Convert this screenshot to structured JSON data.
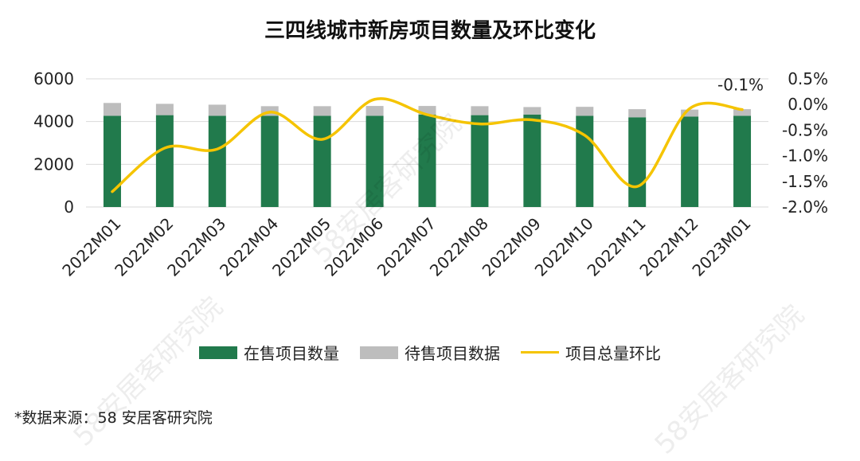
{
  "chart_data": {
    "type": "bar+line",
    "title": "三四线城市新房项目数量及环比变化",
    "categories": [
      "2022M01",
      "2022M02",
      "2022M03",
      "2022M04",
      "2022M05",
      "2022M06",
      "2022M07",
      "2022M08",
      "2022M09",
      "2022M10",
      "2022M11",
      "2022M12",
      "2023M01"
    ],
    "series": [
      {
        "name": "在售项目数量",
        "kind": "stacked-bar",
        "axis": "left",
        "color": "#217a4c",
        "values": [
          4270,
          4300,
          4270,
          4270,
          4270,
          4270,
          4330,
          4300,
          4330,
          4270,
          4200,
          4230,
          4270
        ]
      },
      {
        "name": "待售项目数据",
        "kind": "stacked-bar",
        "axis": "left",
        "color": "#bdbdbd",
        "values": [
          600,
          530,
          520,
          450,
          450,
          460,
          400,
          420,
          350,
          420,
          380,
          330,
          310
        ]
      },
      {
        "name": "项目总量环比",
        "kind": "line",
        "axis": "right",
        "color": "#f5c400",
        "values": [
          -1.7,
          -0.85,
          -0.87,
          -0.15,
          -0.68,
          0.1,
          -0.2,
          -0.38,
          -0.3,
          -0.6,
          -1.6,
          -0.08,
          -0.1
        ]
      }
    ],
    "left_axis": {
      "min": 0,
      "max": 6000,
      "ticks": [
        "6000",
        "4000",
        "2000",
        "0"
      ],
      "tick_values": [
        6000,
        4000,
        2000,
        0
      ]
    },
    "right_axis": {
      "min": -2.0,
      "max": 0.5,
      "ticks": [
        "0.5%",
        "0.0%",
        "-0.5%",
        "-1.0%",
        "-1.5%",
        "-2.0%"
      ],
      "tick_values": [
        0.5,
        0.0,
        -0.5,
        -1.0,
        -1.5,
        -2.0
      ]
    },
    "annotation": {
      "text": "-0.1%",
      "category": "2023M01",
      "series": "项目总量环比"
    },
    "gridlines": true,
    "legend_position": "bottom"
  },
  "source_note": "*数据来源：58 安居客研究院",
  "watermark": "58安居客研究院"
}
